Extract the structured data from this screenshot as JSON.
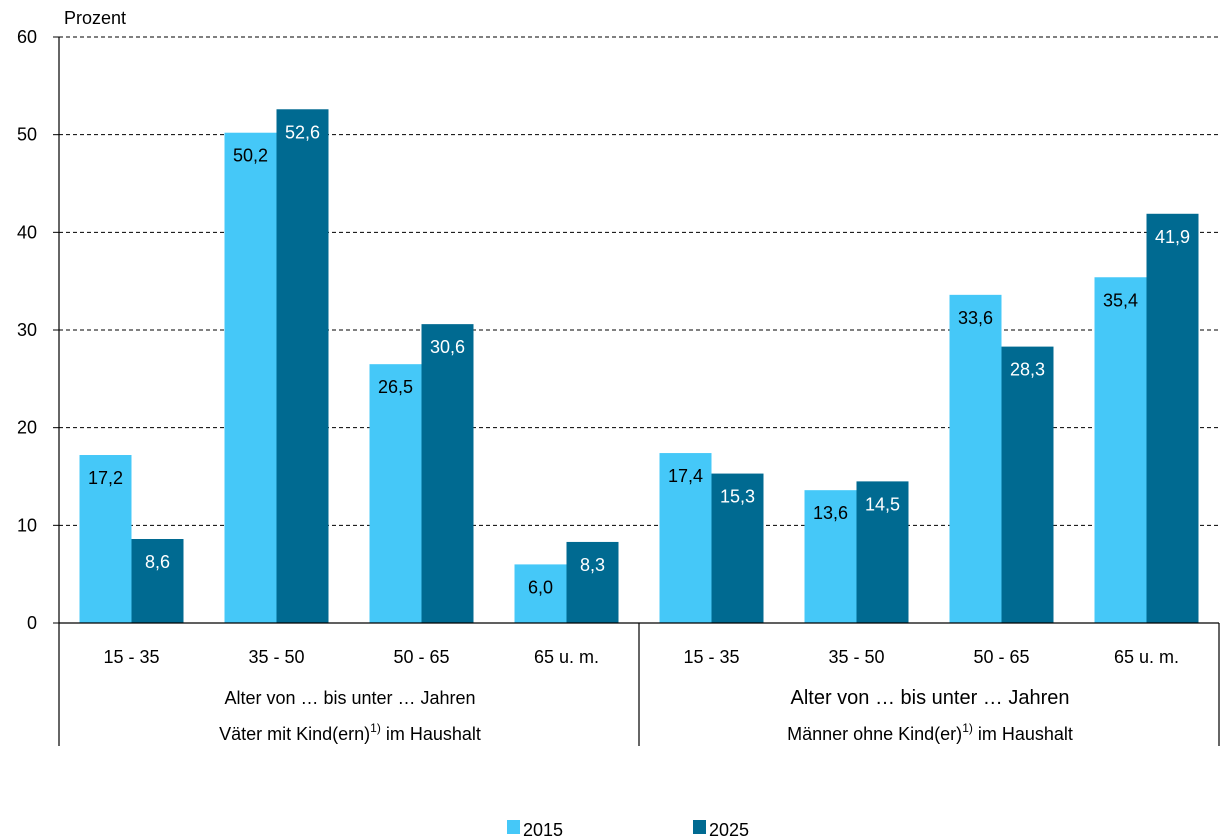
{
  "chart_data": {
    "type": "bar",
    "ylabel": "Prozent",
    "ylim": [
      0,
      60
    ],
    "yticks": [
      0,
      10,
      20,
      30,
      40,
      50,
      60
    ],
    "grid": true,
    "categories": [
      "15 - 35",
      "35 - 50",
      "50 - 65",
      "65 u. m.",
      "15 - 35",
      "35 - 50",
      "50 - 65",
      "65 u. m."
    ],
    "groups": [
      {
        "line1": "Alter von … bis unter … Jahren",
        "line2_pre": "Väter mit Kind(ern)",
        "line2_sup": "1)",
        "line2_post": " im Haushalt"
      },
      {
        "line1": "Alter von … bis unter … Jahren",
        "line2_pre": "Männer ohne Kind(er)",
        "line2_sup": "1)",
        "line2_post": " im Haushalt"
      }
    ],
    "series": [
      {
        "name": "2015",
        "color": "#45c8f8",
        "values": [
          17.2,
          50.2,
          26.5,
          6.0,
          17.4,
          13.6,
          33.6,
          35.4
        ],
        "labels": [
          "17,2",
          "50,2",
          "26,5",
          "6,0",
          "17,4",
          "13,6",
          "33,6",
          "35,4"
        ],
        "label_color": "#000000"
      },
      {
        "name": "2025",
        "color": "#006a91",
        "values": [
          8.6,
          52.6,
          30.6,
          8.3,
          15.3,
          14.5,
          28.3,
          41.9
        ],
        "labels": [
          "8,6",
          "52,6",
          "30,6",
          "8,3",
          "15,3",
          "14,5",
          "28,3",
          "41,9"
        ],
        "label_color": "#ffffff"
      }
    ],
    "legend_position": "bottom"
  }
}
